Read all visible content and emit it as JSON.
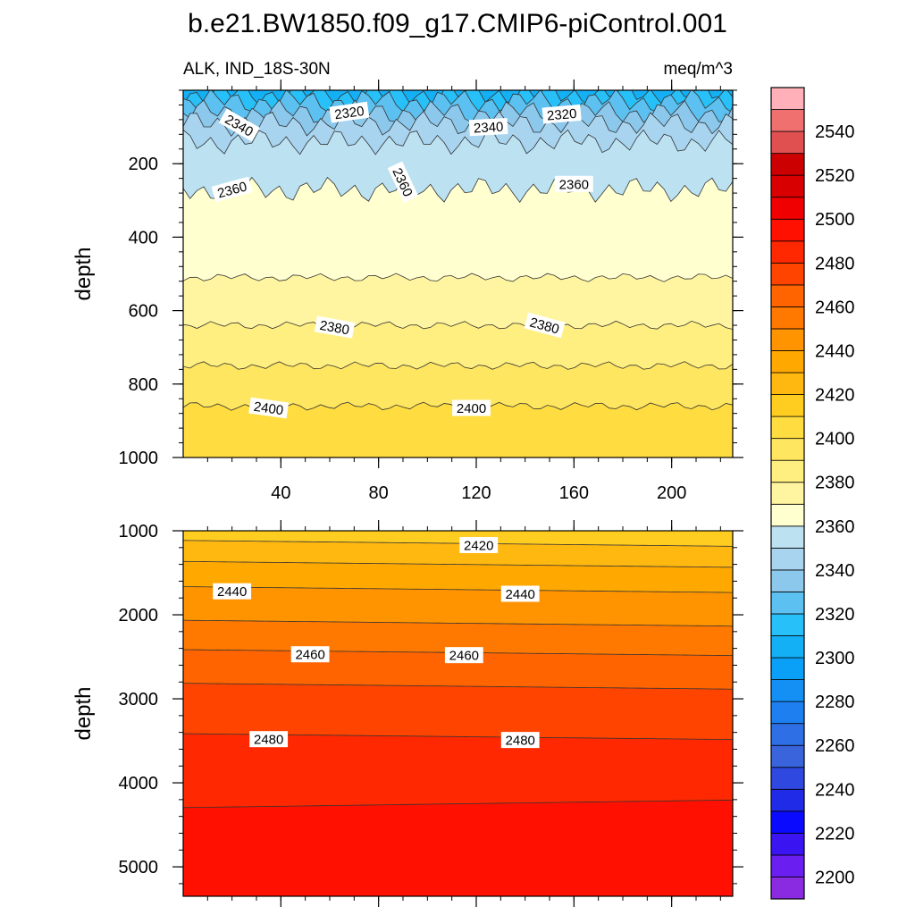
{
  "figure": {
    "title": "b.e21.BW1850.f09_g17.CMIP6-piControl.001",
    "left_string": "ALK, IND_18S-30N",
    "right_string": "meq/m^3"
  },
  "chart_data": {
    "type": "heatmap",
    "title": "b.e21.BW1850.f09_g17.CMIP6-piControl.001",
    "variable": "ALK",
    "region": "IND_18S-30N",
    "units": "meq/m^3",
    "grid": false,
    "legend_placement": "right",
    "x_range": [
      0,
      225
    ],
    "x_ticks": [
      40,
      80,
      120,
      160,
      200
    ],
    "colorbar": {
      "levels": [
        2200,
        2210,
        2220,
        2230,
        2240,
        2250,
        2260,
        2270,
        2280,
        2290,
        2300,
        2310,
        2320,
        2330,
        2340,
        2350,
        2360,
        2370,
        2380,
        2390,
        2400,
        2410,
        2420,
        2430,
        2440,
        2450,
        2460,
        2470,
        2480,
        2490,
        2500,
        2510,
        2520,
        2530,
        2540,
        2550
      ],
      "labels": [
        "2200",
        "2220",
        "2240",
        "2260",
        "2280",
        "2300",
        "2320",
        "2340",
        "2360",
        "2380",
        "2400",
        "2420",
        "2440",
        "2460",
        "2480",
        "2500",
        "2520",
        "2540"
      ],
      "colors": [
        "#8a2be2",
        "#6a1ef0",
        "#3b14f2",
        "#0a0aff",
        "#1f2be6",
        "#2e48e0",
        "#3a64dc",
        "#2f6fe6",
        "#1e80f0",
        "#1490f4",
        "#0aa0f8",
        "#14b0f6",
        "#28c0f8",
        "#5cc0f0",
        "#8cc8ec",
        "#a8d4f0",
        "#bce2f2",
        "#ffffd0",
        "#fff5a0",
        "#ffef80",
        "#ffe660",
        "#ffdc40",
        "#ffcc20",
        "#ffb810",
        "#ffa800",
        "#ff9400",
        "#ff7800",
        "#ff6400",
        "#ff4400",
        "#ff2800",
        "#ff1000",
        "#f00000",
        "#d80000",
        "#cc0000",
        "#e05050",
        "#f07070",
        "#ffb0b8"
      ]
    },
    "panels": [
      {
        "name": "upper",
        "ylabel": "depth",
        "y_range": [
          0,
          1000
        ],
        "y_ticks": [
          200,
          400,
          600,
          800,
          1000
        ],
        "x_tick_labels_shown": true,
        "bands": [
          {
            "from": 0,
            "to": 10,
            "value": 2300
          },
          {
            "from": 10,
            "to": 30,
            "value": 2310
          },
          {
            "from": 30,
            "to": 60,
            "value": 2320
          },
          {
            "from": 60,
            "to": 90,
            "value": 2330
          },
          {
            "from": 90,
            "to": 140,
            "value": 2340
          },
          {
            "from": 140,
            "to": 270,
            "value": 2350
          },
          {
            "from": 270,
            "to": 510,
            "value": 2360
          },
          {
            "from": 510,
            "to": 640,
            "value": 2370
          },
          {
            "from": 640,
            "to": 750,
            "value": 2380
          },
          {
            "from": 750,
            "to": 860,
            "value": 2390
          },
          {
            "from": 860,
            "to": 1000,
            "value": 2400
          }
        ],
        "contour_labels": [
          {
            "text": "2340",
            "x": 23,
            "y": 95,
            "angle": 30
          },
          {
            "text": "2320",
            "x": 68,
            "y": 60,
            "angle": -8
          },
          {
            "text": "2340",
            "x": 125,
            "y": 100,
            "angle": -3
          },
          {
            "text": "2320",
            "x": 155,
            "y": 65,
            "angle": -5
          },
          {
            "text": "2360",
            "x": 20,
            "y": 270,
            "angle": -15
          },
          {
            "text": "2360",
            "x": 90,
            "y": 250,
            "angle": 65
          },
          {
            "text": "2360",
            "x": 160,
            "y": 255,
            "angle": 0
          },
          {
            "text": "2380",
            "x": 62,
            "y": 645,
            "angle": 10
          },
          {
            "text": "2380",
            "x": 148,
            "y": 640,
            "angle": 15
          },
          {
            "text": "2400",
            "x": 35,
            "y": 865,
            "angle": 8
          },
          {
            "text": "2400",
            "x": 118,
            "y": 865,
            "angle": 0
          }
        ]
      },
      {
        "name": "lower",
        "ylabel": "depth",
        "y_range": [
          1000,
          5350
        ],
        "y_ticks": [
          1000,
          2000,
          3000,
          4000,
          5000
        ],
        "x_tick_labels_shown": false,
        "bands": [
          {
            "from": 1000,
            "to": 1150,
            "value": 2410
          },
          {
            "from": 1150,
            "to": 1400,
            "value": 2420
          },
          {
            "from": 1400,
            "to": 1700,
            "value": 2430
          },
          {
            "from": 1700,
            "to": 2100,
            "value": 2440
          },
          {
            "from": 2100,
            "to": 2450,
            "value": 2450
          },
          {
            "from": 2450,
            "to": 2850,
            "value": 2460
          },
          {
            "from": 2850,
            "to": 3450,
            "value": 2470
          },
          {
            "from": 3450,
            "to": 4250,
            "value": 2480
          },
          {
            "from": 4250,
            "to": 5350,
            "value": 2490
          }
        ],
        "contour_labels": [
          {
            "text": "2420",
            "x": 121,
            "y": 1170,
            "angle": 0
          },
          {
            "text": "2440",
            "x": 20,
            "y": 1720,
            "angle": 0
          },
          {
            "text": "2440",
            "x": 138,
            "y": 1750,
            "angle": 0
          },
          {
            "text": "2460",
            "x": 52,
            "y": 2470,
            "angle": 0
          },
          {
            "text": "2460",
            "x": 115,
            "y": 2480,
            "angle": 0
          },
          {
            "text": "2480",
            "x": 35,
            "y": 3480,
            "angle": 0
          },
          {
            "text": "2480",
            "x": 138,
            "y": 3490,
            "angle": 0
          }
        ]
      }
    ]
  }
}
